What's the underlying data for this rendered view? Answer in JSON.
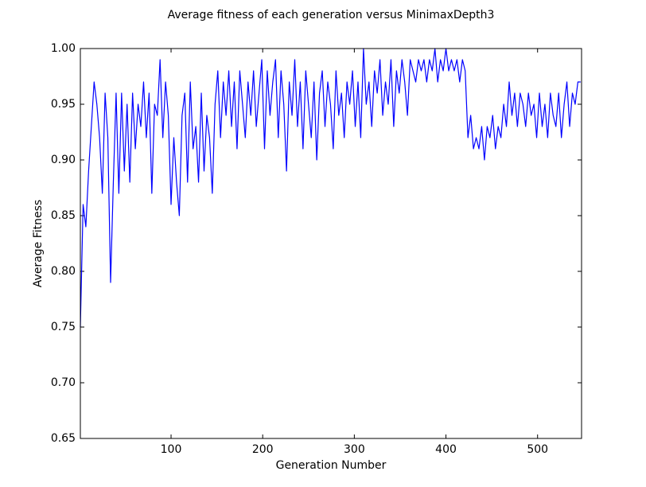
{
  "chart_data": {
    "type": "line",
    "title": "Average fitness of each generation versus MinimaxDepth3",
    "x_label": "Generation Number",
    "y_label": "Average Fitness",
    "x": [
      1,
      4,
      7,
      10,
      13,
      16,
      19,
      22,
      25,
      28,
      31,
      34,
      37,
      40,
      43,
      46,
      49,
      52,
      55,
      58,
      61,
      64,
      67,
      70,
      73,
      76,
      79,
      82,
      85,
      88,
      91,
      94,
      97,
      100,
      103,
      106,
      109,
      112,
      115,
      118,
      121,
      124,
      127,
      130,
      133,
      136,
      139,
      142,
      145,
      148,
      151,
      154,
      157,
      160,
      163,
      166,
      169,
      172,
      175,
      178,
      181,
      184,
      187,
      190,
      193,
      196,
      199,
      202,
      205,
      208,
      211,
      214,
      217,
      220,
      223,
      226,
      229,
      232,
      235,
      238,
      241,
      244,
      247,
      250,
      253,
      256,
      259,
      262,
      265,
      268,
      271,
      274,
      277,
      280,
      283,
      286,
      289,
      292,
      295,
      298,
      301,
      304,
      307,
      310,
      313,
      316,
      319,
      322,
      325,
      328,
      331,
      334,
      337,
      340,
      343,
      346,
      349,
      352,
      355,
      358,
      361,
      364,
      367,
      370,
      373,
      376,
      379,
      382,
      385,
      388,
      391,
      394,
      397,
      400,
      403,
      406,
      409,
      412,
      415,
      418,
      421,
      424,
      427,
      430,
      433,
      436,
      439,
      442,
      445,
      448,
      451,
      454,
      457,
      460,
      463,
      466,
      469,
      472,
      475,
      478,
      481,
      484,
      487,
      490,
      493,
      496,
      499,
      502,
      505,
      508,
      511,
      514,
      517,
      520,
      523,
      526,
      529,
      532,
      535,
      538,
      541,
      544,
      547
    ],
    "series": [
      {
        "name": "Average fitness",
        "color": "#0000ff",
        "values": [
          0.75,
          0.86,
          0.84,
          0.89,
          0.93,
          0.97,
          0.95,
          0.92,
          0.87,
          0.96,
          0.92,
          0.79,
          0.88,
          0.96,
          0.87,
          0.96,
          0.89,
          0.95,
          0.88,
          0.96,
          0.91,
          0.95,
          0.93,
          0.97,
          0.92,
          0.96,
          0.87,
          0.95,
          0.94,
          0.99,
          0.92,
          0.97,
          0.94,
          0.86,
          0.92,
          0.88,
          0.85,
          0.94,
          0.96,
          0.88,
          0.97,
          0.91,
          0.93,
          0.88,
          0.96,
          0.89,
          0.94,
          0.92,
          0.87,
          0.95,
          0.98,
          0.92,
          0.97,
          0.94,
          0.98,
          0.93,
          0.97,
          0.91,
          0.98,
          0.95,
          0.92,
          0.97,
          0.94,
          0.98,
          0.93,
          0.96,
          0.99,
          0.91,
          0.98,
          0.94,
          0.97,
          0.99,
          0.92,
          0.98,
          0.95,
          0.89,
          0.97,
          0.94,
          0.99,
          0.93,
          0.97,
          0.91,
          0.98,
          0.95,
          0.92,
          0.97,
          0.9,
          0.96,
          0.98,
          0.93,
          0.97,
          0.95,
          0.91,
          0.98,
          0.94,
          0.96,
          0.92,
          0.97,
          0.95,
          0.98,
          0.93,
          0.97,
          0.92,
          1.0,
          0.95,
          0.97,
          0.93,
          0.98,
          0.96,
          0.99,
          0.94,
          0.97,
          0.95,
          0.99,
          0.93,
          0.98,
          0.96,
          0.99,
          0.97,
          0.94,
          0.99,
          0.98,
          0.97,
          0.99,
          0.98,
          0.99,
          0.97,
          0.99,
          0.98,
          1.0,
          0.97,
          0.99,
          0.98,
          1.0,
          0.98,
          0.99,
          0.98,
          0.99,
          0.97,
          0.99,
          0.98,
          0.92,
          0.94,
          0.91,
          0.92,
          0.91,
          0.93,
          0.9,
          0.93,
          0.92,
          0.94,
          0.91,
          0.93,
          0.92,
          0.95,
          0.93,
          0.97,
          0.94,
          0.96,
          0.93,
          0.96,
          0.95,
          0.93,
          0.96,
          0.94,
          0.95,
          0.92,
          0.96,
          0.93,
          0.95,
          0.92,
          0.96,
          0.94,
          0.93,
          0.96,
          0.92,
          0.95,
          0.97,
          0.93,
          0.96,
          0.95,
          0.97,
          0.97
        ]
      }
    ],
    "xlim": [
      1,
      548
    ],
    "xticks": [
      100,
      200,
      300,
      400,
      500
    ],
    "ylim": [
      0.65,
      1.0
    ],
    "yticks": [
      {
        "value": 0.65,
        "label": "0.65"
      },
      {
        "value": 0.7,
        "label": "0.70"
      },
      {
        "value": 0.75,
        "label": "0.75"
      },
      {
        "value": 0.8,
        "label": "0.80"
      },
      {
        "value": 0.85,
        "label": "0.85"
      },
      {
        "value": 0.9,
        "label": "0.90"
      },
      {
        "value": 0.95,
        "label": "0.95"
      },
      {
        "value": 1.0,
        "label": "1.00"
      }
    ],
    "grid": false
  }
}
